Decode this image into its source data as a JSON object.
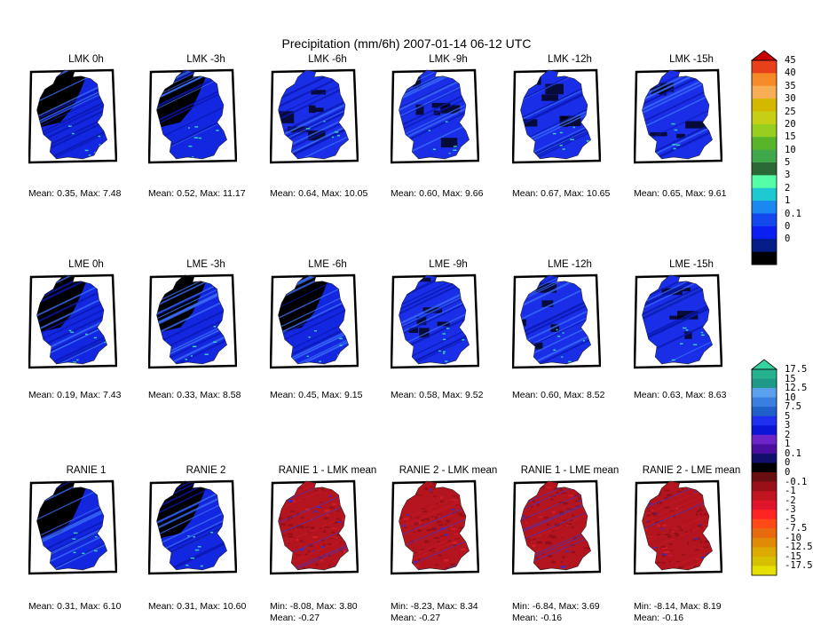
{
  "title": "Precipitation (mm/6h) 2007-01-14 06-12 UTC",
  "chart_data": [
    {
      "type": "heatmap",
      "title": "LMK 0h",
      "stats": "Mean: 0.35, Max: 7.48",
      "mean": 0.35,
      "max": 7.48,
      "colorbar": "precip",
      "pattern": "dry-west"
    },
    {
      "type": "heatmap",
      "title": "LMK -3h",
      "stats": "Mean: 0.52, Max: 11.17",
      "mean": 0.52,
      "max": 11.17,
      "colorbar": "precip",
      "pattern": "dry-west"
    },
    {
      "type": "heatmap",
      "title": "LMK -6h",
      "stats": "Mean: 0.64, Max: 10.05",
      "mean": 0.64,
      "max": 10.05,
      "colorbar": "precip",
      "pattern": "wet"
    },
    {
      "type": "heatmap",
      "title": "LMK -9h",
      "stats": "Mean: 0.60, Max: 9.66",
      "mean": 0.6,
      "max": 9.66,
      "colorbar": "precip",
      "pattern": "wet"
    },
    {
      "type": "heatmap",
      "title": "LMK -12h",
      "stats": "Mean: 0.67, Max: 10.65",
      "mean": 0.67,
      "max": 10.65,
      "colorbar": "precip",
      "pattern": "wet"
    },
    {
      "type": "heatmap",
      "title": "LMK -15h",
      "stats": "Mean: 0.65, Max: 9.61",
      "mean": 0.65,
      "max": 9.61,
      "colorbar": "precip",
      "pattern": "wet"
    },
    {
      "type": "heatmap",
      "title": "LME 0h",
      "stats": "Mean: 0.19, Max: 7.43",
      "mean": 0.19,
      "max": 7.43,
      "colorbar": "precip",
      "pattern": "dry-west"
    },
    {
      "type": "heatmap",
      "title": "LME -3h",
      "stats": "Mean: 0.33, Max: 8.58",
      "mean": 0.33,
      "max": 8.58,
      "colorbar": "precip",
      "pattern": "dry-west"
    },
    {
      "type": "heatmap",
      "title": "LME -6h",
      "stats": "Mean: 0.45, Max: 9.15",
      "mean": 0.45,
      "max": 9.15,
      "colorbar": "precip",
      "pattern": "dry-west"
    },
    {
      "type": "heatmap",
      "title": "LME -9h",
      "stats": "Mean: 0.58, Max: 9.52",
      "mean": 0.58,
      "max": 9.52,
      "colorbar": "precip",
      "pattern": "wet"
    },
    {
      "type": "heatmap",
      "title": "LME -12h",
      "stats": "Mean: 0.60, Max: 8.52",
      "mean": 0.6,
      "max": 8.52,
      "colorbar": "precip",
      "pattern": "wet"
    },
    {
      "type": "heatmap",
      "title": "LME -15h",
      "stats": "Mean: 0.63, Max: 8.63",
      "mean": 0.63,
      "max": 8.63,
      "colorbar": "precip",
      "pattern": "wet"
    },
    {
      "type": "heatmap",
      "title": "RANIE 1",
      "stats": "Mean: 0.31, Max: 6.10",
      "mean": 0.31,
      "max": 6.1,
      "colorbar": "precip",
      "pattern": "dry-west"
    },
    {
      "type": "heatmap",
      "title": "RANIE 2",
      "stats": "Mean: 0.31, Max: 10.60",
      "mean": 0.31,
      "max": 10.6,
      "colorbar": "precip",
      "pattern": "dry-west"
    },
    {
      "type": "heatmap",
      "title": "RANIE 1 - LMK mean",
      "stats": "Min: -8.08, Max: 3.80",
      "stats2": "Mean: -0.27",
      "min": -8.08,
      "max": 3.8,
      "mean": -0.27,
      "colorbar": "diff",
      "pattern": "diff"
    },
    {
      "type": "heatmap",
      "title": "RANIE 2 - LMK mean",
      "stats": "Min: -8.23, Max: 8.34",
      "stats2": "Mean: -0.27",
      "min": -8.23,
      "max": 8.34,
      "mean": -0.27,
      "colorbar": "diff",
      "pattern": "diff"
    },
    {
      "type": "heatmap",
      "title": "RANIE 1 - LME mean",
      "stats": "Min: -6.84, Max: 3.69",
      "stats2": "Mean: -0.16",
      "min": -6.84,
      "max": 3.69,
      "mean": -0.16,
      "colorbar": "diff",
      "pattern": "diff"
    },
    {
      "type": "heatmap",
      "title": "RANIE 2 - LME mean",
      "stats": "Min: -8.14, Max: 8.19",
      "stats2": "Mean: -0.16",
      "min": -8.14,
      "max": 8.19,
      "mean": -0.16,
      "colorbar": "diff",
      "pattern": "diff"
    }
  ],
  "colorbars": {
    "precip": {
      "labels": [
        "45",
        "40",
        "35",
        "30",
        "25",
        "20",
        "15",
        "10",
        "5",
        "3",
        "2",
        "1",
        "0.1",
        "0",
        "0"
      ],
      "colors": [
        "#cc0000",
        "#e8401a",
        "#f58a26",
        "#f7ad56",
        "#d4b800",
        "#c6cf16",
        "#96cf20",
        "#58b52a",
        "#3ea84a",
        "#2b6a36",
        "#55ffa8",
        "#1ec8d0",
        "#1a88f0",
        "#1449ee",
        "#0a1ff0",
        "#041c86",
        "#000000"
      ]
    },
    "diff": {
      "labels": [
        "17.5",
        "15",
        "12.5",
        "10",
        "7.5",
        "5",
        "3",
        "2",
        "1",
        "0.1",
        "0",
        "0",
        "-0.1",
        "-1",
        "-2",
        "-3",
        "-5",
        "-7.5",
        "-10",
        "-12.5",
        "-15",
        "-17.5"
      ],
      "colors": [
        "#35d3a0",
        "#27b28f",
        "#1f9a88",
        "#5aa0ef",
        "#3a7fe0",
        "#1f5fc8",
        "#1e2ff0",
        "#0c14d8",
        "#6a24c8",
        "#4a0fa0",
        "#10106a",
        "#000000",
        "#6a0f10",
        "#9a1018",
        "#c01420",
        "#e0142a",
        "#ff2424",
        "#ff4a18",
        "#e86a0e",
        "#e08a06",
        "#dcaa00",
        "#d6c000",
        "#e6e000"
      ]
    }
  }
}
